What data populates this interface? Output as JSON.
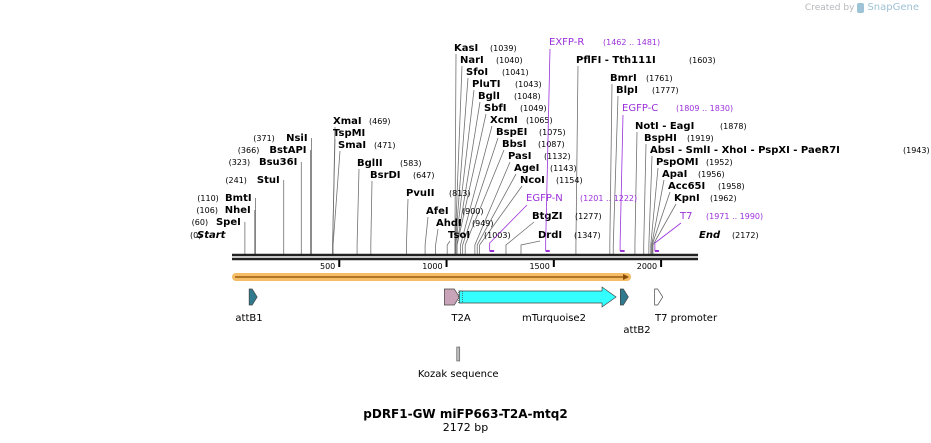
{
  "branding": {
    "created_by": "Created by",
    "product": "SnapGene"
  },
  "sequence": {
    "name": "pDRF1-GW miFP663-T2A-mtq2",
    "length_label": "2172 bp",
    "length": 2172
  },
  "endpoints": {
    "start": {
      "label": "Start",
      "pos": "(0)"
    },
    "end": {
      "label": "End",
      "pos": "(2172)"
    }
  },
  "axis_ticks": [
    {
      "value": 500,
      "label": "500"
    },
    {
      "value": 1000,
      "label": "1000"
    },
    {
      "value": 1500,
      "label": "1500"
    },
    {
      "value": 2000,
      "label": "2000"
    }
  ],
  "sites_left": [
    {
      "name": "SpeI",
      "pos": "(60)",
      "bp": 60
    },
    {
      "name": "NheI",
      "pos": "(106)",
      "bp": 106
    },
    {
      "name": "BmtI",
      "pos": "(110)",
      "bp": 110
    },
    {
      "name": "StuI",
      "pos": "(241)",
      "bp": 241
    },
    {
      "name": "Bsu36I",
      "pos": "(323)",
      "bp": 323
    },
    {
      "name": "BstAPI",
      "pos": "(366)",
      "bp": 366
    },
    {
      "name": "NsiI",
      "pos": "(371)",
      "bp": 371
    }
  ],
  "sites_right": [
    {
      "name": "XmaI",
      "pos": "(469)",
      "bp": 469
    },
    {
      "name": "TspMI",
      "pos": "",
      "bp": 469
    },
    {
      "name": "SmaI",
      "pos": "(471)",
      "bp": 471
    },
    {
      "name": "BglII",
      "pos": "(583)",
      "bp": 583
    },
    {
      "name": "BsrDI",
      "pos": "(647)",
      "bp": 647
    },
    {
      "name": "PvuII",
      "pos": "(813)",
      "bp": 813
    },
    {
      "name": "AfeI",
      "pos": "(900)",
      "bp": 900
    },
    {
      "name": "AhdI",
      "pos": "(949)",
      "bp": 949
    },
    {
      "name": "TsoI",
      "pos": "(1003)",
      "bp": 1003
    },
    {
      "name": "KasI",
      "pos": "(1039)",
      "bp": 1039
    },
    {
      "name": "NarI",
      "pos": "(1040)",
      "bp": 1040
    },
    {
      "name": "SfoI",
      "pos": "(1041)",
      "bp": 1041
    },
    {
      "name": "PluTI",
      "pos": "(1043)",
      "bp": 1043
    },
    {
      "name": "BglI",
      "pos": "(1048)",
      "bp": 1048
    },
    {
      "name": "SbfI",
      "pos": "(1049)",
      "bp": 1049
    },
    {
      "name": "XcmI",
      "pos": "(1065)",
      "bp": 1065
    },
    {
      "name": "BspEI",
      "pos": "(1075)",
      "bp": 1075
    },
    {
      "name": "BbsI",
      "pos": "(1087)",
      "bp": 1087
    },
    {
      "name": "PasI",
      "pos": "(1132)",
      "bp": 1132
    },
    {
      "name": "AgeI",
      "pos": "(1143)",
      "bp": 1143
    },
    {
      "name": "NcoI",
      "pos": "(1154)",
      "bp": 1154
    },
    {
      "name": "BtgZI",
      "pos": "(1277)",
      "bp": 1277
    },
    {
      "name": "DrdI",
      "pos": "(1347)",
      "bp": 1347
    },
    {
      "name": "PflFI - Tth111I",
      "pos": "(1603)",
      "bp": 1603
    },
    {
      "name": "BmrI",
      "pos": "(1761)",
      "bp": 1761
    },
    {
      "name": "BlpI",
      "pos": "(1777)",
      "bp": 1777
    },
    {
      "name": "NotI - EagI",
      "pos": "(1878)",
      "bp": 1878
    },
    {
      "name": "BspHI",
      "pos": "(1919)",
      "bp": 1919
    },
    {
      "name": "AbsI - SmlI - XhoI - PspXI - PaeR7I",
      "pos": "(1943)",
      "bp": 1943
    },
    {
      "name": "PspOMI",
      "pos": "(1952)",
      "bp": 1952
    },
    {
      "name": "ApaI",
      "pos": "(1956)",
      "bp": 1956
    },
    {
      "name": "Acc65I",
      "pos": "(1958)",
      "bp": 1958
    },
    {
      "name": "KpnI",
      "pos": "(1962)",
      "bp": 1962
    }
  ],
  "primers": [
    {
      "name": "EXFP-R",
      "range": "(1462 .. 1481)",
      "start": 1462,
      "end": 1481,
      "color": "#9b30d9"
    },
    {
      "name": "EGFP-C",
      "range": "(1809 .. 1830)",
      "start": 1809,
      "end": 1830,
      "color": "#9b30d9"
    },
    {
      "name": "EGFP-N",
      "range": "(1201 .. 1222)",
      "start": 1201,
      "end": 1222,
      "color": "#9b30d9"
    },
    {
      "name": "T7",
      "range": "(1971 .. 1990)",
      "start": 1971,
      "end": 1990,
      "color": "#9b30d9"
    }
  ],
  "features": [
    {
      "name": "attB1",
      "start": 80,
      "end": 104,
      "color": "#2f7a8c",
      "type": "protein_bind"
    },
    {
      "name": "T2A",
      "start": 990,
      "end": 1050,
      "color": "#c9a3b8",
      "type": "cds"
    },
    {
      "name": "mTurquoise2",
      "start": 1060,
      "end": 1790,
      "color": "#33ffff",
      "type": "cds"
    },
    {
      "name": "attB2",
      "start": 1810,
      "end": 1834,
      "color": "#2f7a8c",
      "type": "protein_bind"
    },
    {
      "name": "T7 promoter",
      "start": 1970,
      "end": 1988,
      "color": "#ffffff",
      "type": "promoter"
    },
    {
      "name": "Kozak sequence",
      "start": 1050,
      "end": 1059,
      "color": "#bbbbbb",
      "type": "misc"
    }
  ],
  "orf": {
    "start": 0,
    "end": 1860,
    "color": "#f2b24b"
  },
  "colors": {
    "site": "#000000",
    "primer": "#9b30d9",
    "backbone": "#222222",
    "leader": "#707070"
  }
}
